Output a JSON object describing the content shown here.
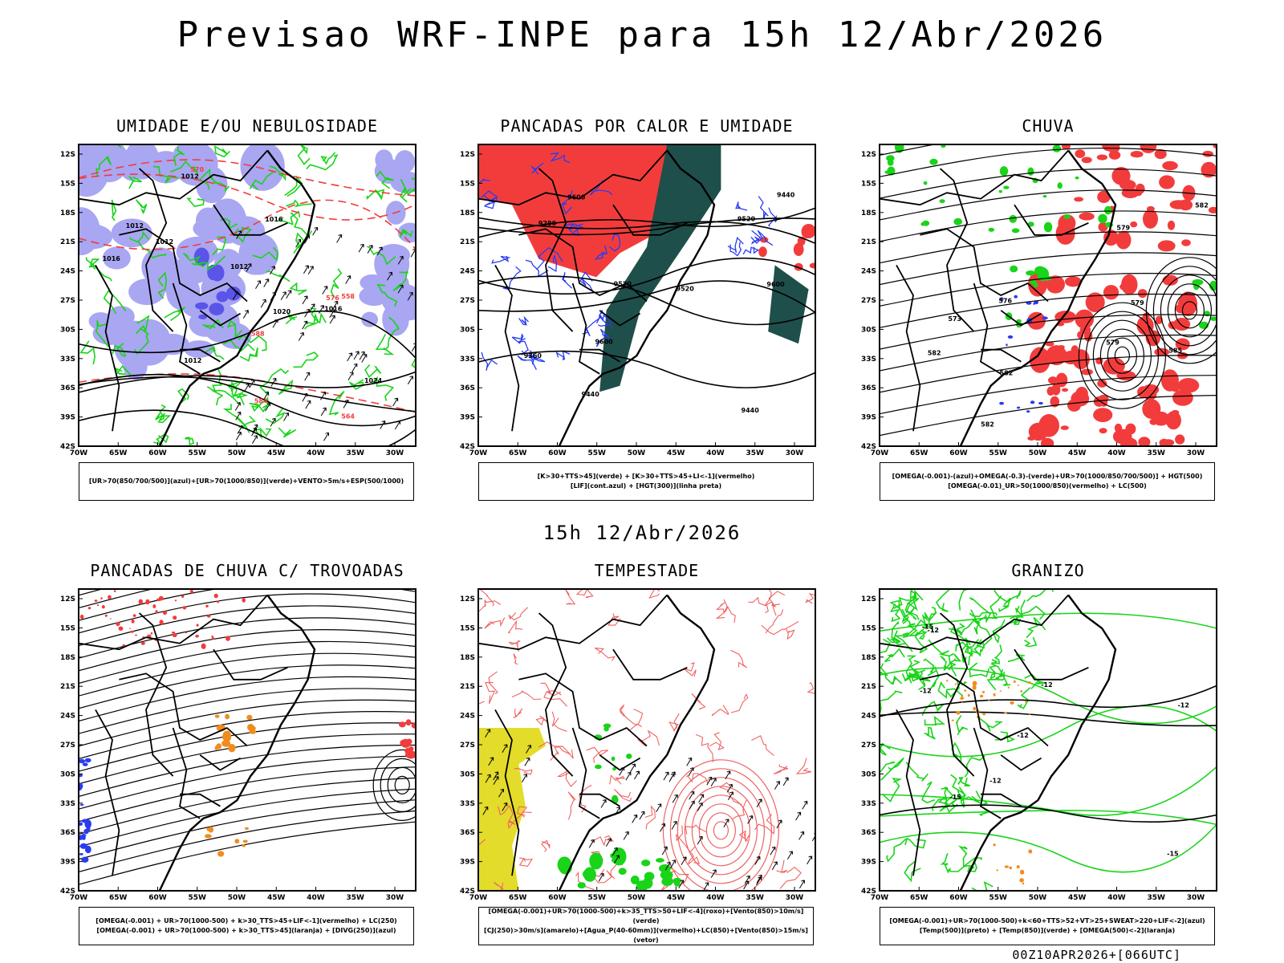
{
  "header": {
    "title": "Previsao WRF-INPE  para 15h 12/Abr/2026"
  },
  "middle": {
    "time_label": "15h 12/Abr/2026"
  },
  "footer": {
    "run_label": "00Z10APR2026+[066UTC]"
  },
  "axes": {
    "lat_labels": [
      "12S",
      "15S",
      "18S",
      "21S",
      "24S",
      "27S",
      "30S",
      "33S",
      "36S",
      "39S",
      "42S"
    ],
    "lon_labels": [
      "70W",
      "65W",
      "60W",
      "55W",
      "50W",
      "45W",
      "40W",
      "35W",
      "30W"
    ]
  },
  "colors": {
    "blue_fill": "#a9a6f2",
    "blue_dark": "#5a55e8",
    "green": "#19d419",
    "red": "#f23c3c",
    "darkteal": "#1f4f4a",
    "orange": "#f08c1e",
    "yellow": "#e3dc2a",
    "contour_red": "#f06262",
    "blue_line": "#2a3cf0"
  },
  "panels": [
    {
      "title": "UMIDADE E/OU NEBULOSIDADE",
      "legend": [
        "[UR>70(850/700/500)](azul)+[UR>70(1000/850)](verde)+VENTO>5m/s+ESP(500/1000)"
      ],
      "labels": [
        "1012",
        "1012",
        "1012",
        "1012",
        "1012",
        "1016",
        "1016",
        "1020",
        "1024",
        "1016",
        "570",
        "576",
        "564",
        "558",
        "588",
        "584"
      ]
    },
    {
      "title": "PANCADAS POR CALOR E UMIDADE",
      "legend": [
        "[K>30+TTS>45](verde) + [K>30+TTS>45+LI<-1](vermelho)",
        "[LIF](cont.azul) + [HGT(300)](linha preta)"
      ],
      "labels": [
        "9600",
        "9600",
        "9520",
        "9440",
        "9360",
        "9280",
        "9520",
        "9440",
        "9600",
        "9440",
        "9520"
      ]
    },
    {
      "title": "CHUVA",
      "legend": [
        "[OMEGA(-0.001)-(azul)+OMEGA(-0.3)-(verde)+UR>70(1000/850/700/500)] + HGT(500)",
        "[OMEGA(-0.01)_UR>50(1000/850)(vermelho) + LC(500)"
      ],
      "labels": [
        "582",
        "579",
        "576",
        "582",
        "585",
        "579",
        "573",
        "582",
        "579",
        "582"
      ]
    },
    {
      "title": "PANCADAS DE CHUVA C/ TROVOADAS",
      "legend": [
        "[OMEGA(-0.001) + UR>70(1000-500) + k>30_TTS>45+LIF<-1](vermelho) + LC(250)",
        "[OMEGA(-0.001) + UR>70(1000-500) + k>30_TTS>45](laranja) + [DIVG(250)](azul)"
      ],
      "labels": []
    },
    {
      "title": "TEMPESTADE",
      "legend": [
        "[OMEGA(-0.001)+UR>70(1000-500)+k>35_TTS>50+LIF<-4](roxo)+[Vento(850)>10m/s](verde)",
        "[CJ(250)>30m/s](amarelo)+[Agua_P(40-60mm)](vermelho)+LC(850)+[Vento(850)>15m/s](vetor)"
      ],
      "labels": []
    },
    {
      "title": "GRANIZO",
      "legend": [
        "[OMEGA(-0.001)+UR>70(1000-500)+k<60+TTS>52+VT>25+SWEAT>220+LIF<-2](azul)",
        "[Temp(500)](preto) + [Temp(850)](verde) + [OMEGA(500)<-2](laranja)"
      ],
      "labels": [
        "-12",
        "-12",
        "-15",
        "-12",
        "-12",
        "-12",
        "-15",
        "-15",
        "-12"
      ]
    }
  ]
}
